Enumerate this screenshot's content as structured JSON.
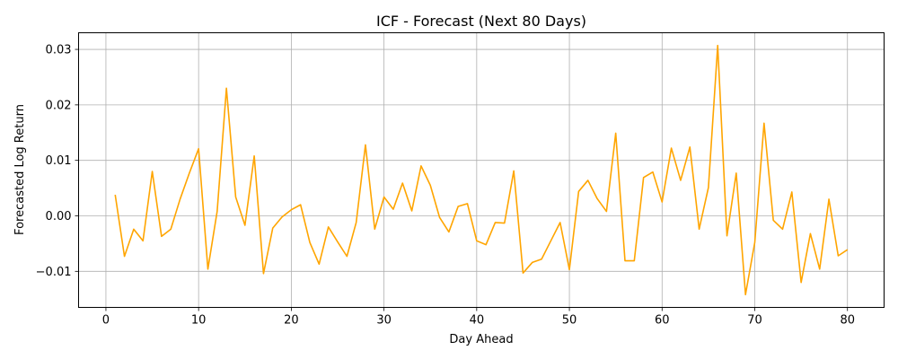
{
  "chart_data": {
    "type": "line",
    "title": "ICF - Forecast (Next 80 Days)",
    "xlabel": "Day Ahead",
    "ylabel": "Forecasted Log Return",
    "xlim": [
      -2.95,
      83.95
    ],
    "ylim": [
      -0.0165,
      0.033
    ],
    "xticks": [
      0,
      10,
      20,
      30,
      40,
      50,
      60,
      70,
      80
    ],
    "xtick_labels": [
      "0",
      "10",
      "20",
      "30",
      "40",
      "50",
      "60",
      "70",
      "80"
    ],
    "yticks": [
      -0.01,
      0.0,
      0.01,
      0.02,
      0.03
    ],
    "ytick_labels": [
      "−0.01",
      "0.00",
      "0.01",
      "0.02",
      "0.03"
    ],
    "grid": true,
    "color": "#ffa500",
    "x": [
      1,
      2,
      3,
      4,
      5,
      6,
      7,
      8,
      9,
      10,
      11,
      12,
      13,
      14,
      15,
      16,
      17,
      18,
      19,
      20,
      21,
      22,
      23,
      24,
      25,
      26,
      27,
      28,
      29,
      30,
      31,
      32,
      33,
      34,
      35,
      36,
      37,
      38,
      39,
      40,
      41,
      42,
      43,
      44,
      45,
      46,
      47,
      48,
      49,
      50,
      51,
      52,
      53,
      54,
      55,
      56,
      57,
      58,
      59,
      60,
      61,
      62,
      63,
      64,
      65,
      66,
      67,
      68,
      69,
      70,
      71,
      72,
      73,
      74,
      75,
      76,
      77,
      78,
      79,
      80
    ],
    "series": [
      {
        "values": [
          0.0038,
          -0.0073,
          -0.0024,
          -0.0045,
          0.008,
          -0.0037,
          -0.0024,
          0.003,
          0.0077,
          0.0121,
          -0.0096,
          0.0008,
          0.023,
          0.0034,
          -0.0017,
          0.0108,
          -0.0104,
          -0.0022,
          -0.0002,
          0.0011,
          0.002,
          -0.0048,
          -0.0087,
          -0.002,
          -0.0047,
          -0.0073,
          -0.0012,
          0.0128,
          -0.0024,
          0.0034,
          0.0012,
          0.0059,
          0.0009,
          0.009,
          0.0055,
          -0.0003,
          -0.0029,
          0.0017,
          0.0022,
          -0.0045,
          -0.0052,
          -0.0012,
          -0.0013,
          0.0081,
          -0.0103,
          -0.0084,
          -0.0078,
          -0.0045,
          -0.0012,
          -0.0097,
          0.0044,
          0.0064,
          0.0031,
          0.0008,
          0.0149,
          -0.0081,
          -0.0081,
          0.0069,
          0.0079,
          0.0025,
          0.0122,
          0.0064,
          0.0124,
          -0.0024,
          0.0051,
          0.0307,
          -0.0036,
          0.0077,
          -0.0142,
          -0.0048,
          0.0167,
          -0.0008,
          -0.0024,
          0.0043,
          -0.012,
          -0.0032,
          -0.0096,
          0.003,
          -0.0072,
          -0.0061
        ]
      }
    ]
  }
}
